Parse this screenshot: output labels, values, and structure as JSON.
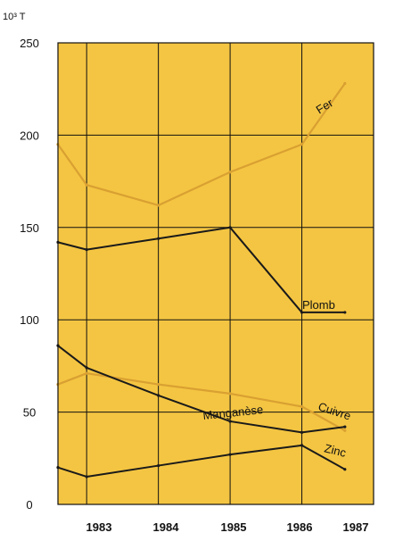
{
  "colors": {
    "background": "#f4c542",
    "grid": "#111111",
    "gold_series": "#d9a032",
    "dark_series": "#1a1a1a"
  },
  "chart_data": {
    "type": "line",
    "unit_label": "10³ T",
    "x": [
      "1983",
      "1984",
      "1985",
      "1986",
      "1987"
    ],
    "x_positions": [
      1982.6,
      1983,
      1984,
      1985,
      1986,
      1986.6
    ],
    "ylim": [
      0,
      250
    ],
    "yticks": [
      "0",
      "50",
      "100",
      "150",
      "200",
      "250"
    ],
    "grid": true,
    "series": [
      {
        "name": "Fer",
        "color": "gold",
        "points": [
          [
            1982.6,
            195
          ],
          [
            1983,
            173
          ],
          [
            1984,
            162
          ],
          [
            1985,
            180
          ],
          [
            1986,
            195
          ],
          [
            1986.6,
            228
          ]
        ]
      },
      {
        "name": "Plomb",
        "color": "dark",
        "points": [
          [
            1982.6,
            142
          ],
          [
            1983,
            138
          ],
          [
            1984,
            144
          ],
          [
            1985,
            150
          ],
          [
            1986,
            104
          ],
          [
            1986.6,
            104
          ]
        ]
      },
      {
        "name": "Cuivre",
        "color": "gold",
        "points": [
          [
            1982.6,
            65
          ],
          [
            1983,
            71
          ],
          [
            1984,
            65
          ],
          [
            1985,
            60
          ],
          [
            1986,
            53
          ],
          [
            1986.6,
            40
          ]
        ]
      },
      {
        "name": "Manganèse",
        "color": "dark",
        "points": [
          [
            1982.6,
            86
          ],
          [
            1983,
            74
          ],
          [
            1984,
            59
          ],
          [
            1985,
            45
          ],
          [
            1986,
            39
          ],
          [
            1986.6,
            42
          ]
        ]
      },
      {
        "name": "Zinc",
        "color": "dark",
        "points": [
          [
            1982.6,
            20
          ],
          [
            1983,
            15
          ],
          [
            1984,
            21
          ],
          [
            1985,
            27
          ],
          [
            1986,
            32
          ],
          [
            1986.6,
            19
          ]
        ]
      }
    ]
  }
}
